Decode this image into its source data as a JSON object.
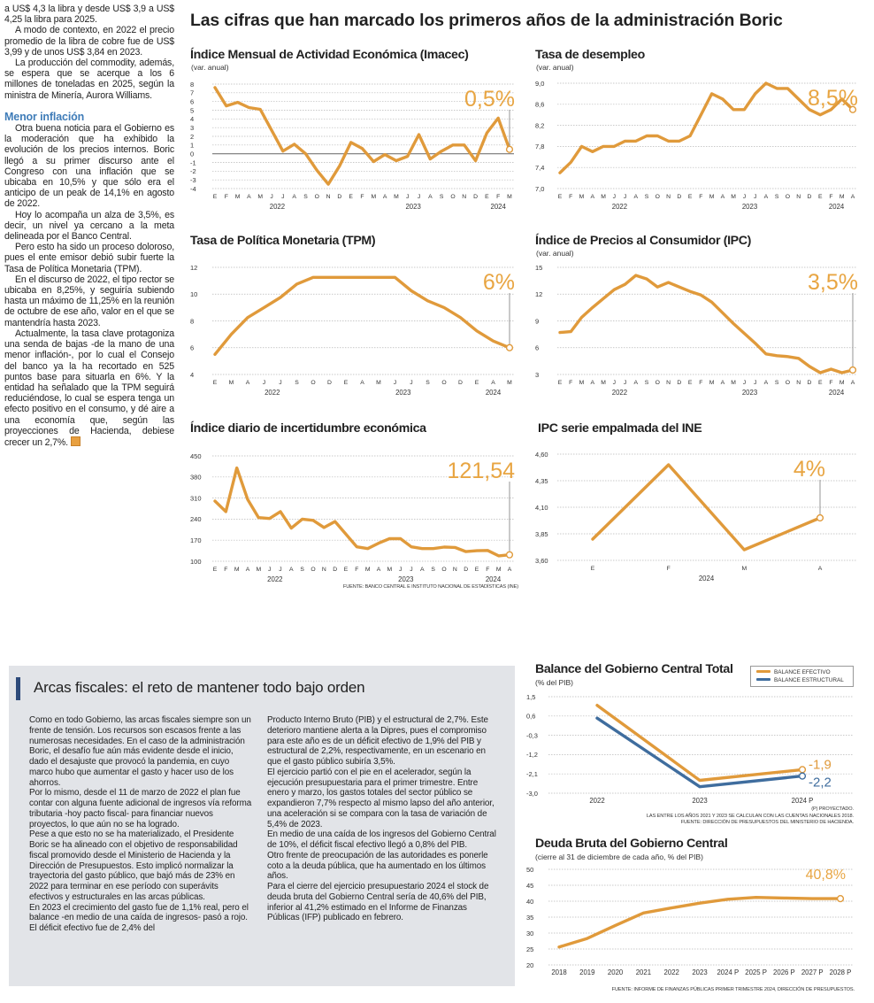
{
  "headline": "Las cifras que han marcado los primeros años de la administración Boric",
  "left_column": {
    "paragraphs_top": [
      "a US$ 4,3 la libra y desde US$ 3,9 a US$ 4,25 la libra para 2025.",
      "A modo de contexto, en 2022 el precio promedio de la libra de cobre fue de US$ 3,99 y de unos US$ 3,84 en 2023.",
      "La producción del commodity, además, se espera que se acerque a los 6 millones de toneladas en 2025, según la ministra de Minería, Aurora Williams."
    ],
    "subhead": "Menor inflación",
    "paragraphs_bottom": [
      "Otra buena noticia para el Gobierno es la moderación que ha exhibido la evolución de los precios internos. Boric llegó a su primer discurso ante el Congreso con una inflación que se ubicaba en 10,5% y que sólo era el anticipo de un peak de 14,1% en agosto de 2022.",
      "Hoy lo acompaña un alza de 3,5%, es decir, un nivel ya cercano a la meta delineada por el Banco Central.",
      "Pero esto ha sido un proceso doloroso, pues el ente emisor debió subir fuerte la Tasa de Política Monetaria (TPM).",
      "En el discurso de 2022, el tipo rector se ubicaba en 8,25%, y seguiría subiendo hasta un máximo de 11,25% en la reunión de octubre de ese año, valor en el que se mantendría hasta 2023.",
      "Actualmente, la tasa clave protagoniza una senda de bajas -de la mano de una menor inflación-, por lo cual el Consejo del banco ya la ha recortado en 525 puntos base para situarla en 6%. Y la entidad ha señalado que la TPM seguirá reduciéndose, lo cual se espera tenga un efecto positivo en el consumo, y dé aire a una economía que, según las proyecciones de Hacienda, debiese crecer un 2,7%."
    ],
    "end_icon": "end-of-article-square"
  },
  "fiscal_box": {
    "title": "Arcas fiscales: el reto de mantener todo bajo orden",
    "col1": [
      "Como en todo Gobierno, las arcas fiscales siempre son un frente de tensión. Los recursos son escasos frente a las numerosas necesidades. En el caso de la administración Boric, el desafío fue aún más evidente desde el inicio, dado el desajuste que provocó la pandemia, en cuyo marco hubo que aumentar el gasto y hacer uso de los ahorros.",
      "Por lo mismo, desde el 11 de marzo de 2022 el plan fue contar con alguna fuente adicional de ingresos vía reforma tributaria -hoy pacto fiscal- para financiar nuevos proyectos, lo que aún no se ha logrado.",
      "Pese a que esto no se ha materializado, el Presidente Boric se ha alineado con el objetivo de responsabilidad fiscal promovido desde el Ministerio de Hacienda y la Dirección de Presupuestos. Esto implicó normalizar la trayectoria del gasto público, que bajó más de 23% en 2022 para terminar en ese período con superávits efectivos y estructurales en las arcas públicas.",
      "En 2023 el crecimiento del gasto fue de 1,1% real, pero el balance -en medio de una caída de ingresos- pasó a rojo. El déficit efectivo fue de 2,4% del"
    ],
    "col2": [
      "Producto Interno Bruto (PIB) y el estructural de 2,7%. Este deterioro mantiene alerta a la Dipres, pues el compromiso para este año es de un déficit efectivo de 1,9% del PIB y estructural de 2,2%, respectivamente, en un escenario en que el gasto público subiría 3,5%.",
      "El ejercicio partió con el pie en el acelerador, según la ejecución presupuestaria para el primer trimestre. Entre enero y marzo, los gastos totales del sector público se expandieron 7,7% respecto al mismo lapso del año anterior, una aceleración si se compara con la tasa de variación de 5,4% de 2023.",
      "En medio de una caída de los ingresos del Gobierno Central de 10%, el déficit fiscal efectivo llegó a 0,8% del PIB.",
      "Otro frente de preocupación de las autoridades es ponerle coto a la deuda pública, que ha aumentado en los últimos años.",
      "Para el cierre del ejercicio presupuestario 2024 el stock de deuda bruta del Gobierno Central sería de 40,6% del PIB, inferior al 41,2% estimado en el Informe de Finanzas Públicas (IFP) publicado en febrero."
    ]
  },
  "colors": {
    "orange": "#e09a3b",
    "orange_label": "#e8a542",
    "blue": "#3f6d9e",
    "box_bg": "#e2e4e8",
    "accent_bar": "#2d4a7a",
    "subhead": "#3f7cb8"
  },
  "chart_data": [
    {
      "id": "imacec",
      "type": "line",
      "title": "Índice Mensual de Actividad Económica (Imacec)",
      "subtitle": "(var. anual)",
      "categories": [
        "E",
        "F",
        "M",
        "A",
        "M",
        "J",
        "J",
        "A",
        "S",
        "O",
        "N",
        "D",
        "E",
        "F",
        "M",
        "A",
        "M",
        "J",
        "J",
        "A",
        "S",
        "O",
        "N",
        "D",
        "E",
        "F",
        "M"
      ],
      "year_groups": [
        {
          "year": "2022",
          "count": 12
        },
        {
          "year": "2023",
          "count": 12
        },
        {
          "year": "2024",
          "count": 3
        }
      ],
      "series": [
        {
          "color": "#e09a3b",
          "values": [
            7.6,
            5.5,
            5.9,
            5.3,
            5.1,
            2.7,
            0.3,
            1.1,
            0.0,
            -1.9,
            -3.5,
            -1.4,
            1.3,
            0.6,
            -0.9,
            -0.1,
            -0.8,
            -0.3,
            2.2,
            -0.6,
            0.3,
            1.0,
            1.0,
            -0.8,
            2.4,
            4.1,
            0.5
          ]
        }
      ],
      "ylim": [
        -4,
        8
      ],
      "y_ticks": [
        "8",
        "7",
        "6",
        "5",
        "4",
        "3",
        "2",
        "1",
        "0",
        "-1",
        "-2",
        "-3",
        "-4"
      ],
      "zero_line": true,
      "grid": true,
      "callout": "0,5%",
      "callout_style": "line"
    },
    {
      "id": "desempleo",
      "type": "line",
      "title": "Tasa de desempleo",
      "subtitle": "(var. anual)",
      "categories": [
        "E",
        "F",
        "M",
        "A",
        "M",
        "J",
        "J",
        "A",
        "S",
        "O",
        "N",
        "D",
        "E",
        "F",
        "M",
        "A",
        "M",
        "J",
        "J",
        "A",
        "S",
        "O",
        "N",
        "D",
        "E",
        "F",
        "M",
        "A"
      ],
      "year_groups": [
        {
          "year": "2022",
          "count": 12
        },
        {
          "year": "2023",
          "count": 12
        },
        {
          "year": "2024",
          "count": 4
        }
      ],
      "series": [
        {
          "color": "#e09a3b",
          "values": [
            7.3,
            7.5,
            7.8,
            7.7,
            7.8,
            7.8,
            7.9,
            7.9,
            8.0,
            8.0,
            7.9,
            7.9,
            8.0,
            8.4,
            8.8,
            8.7,
            8.5,
            8.5,
            8.8,
            9.0,
            8.9,
            8.9,
            8.7,
            8.5,
            8.4,
            8.5,
            8.7,
            8.5
          ]
        }
      ],
      "ylim": [
        7.0,
        9.0
      ],
      "y_ticks": [
        "9,0",
        "8,6",
        "8,2",
        "7,8",
        "7,4",
        "7,0"
      ],
      "grid": true,
      "callout": "8,5%",
      "callout_style": "line"
    },
    {
      "id": "tpm",
      "type": "line",
      "title": "Tasa de Política Monetaria (TPM)",
      "categories": [
        "E",
        "M",
        "A",
        "J",
        "J",
        "S",
        "O",
        "D",
        "E",
        "A",
        "M",
        "J",
        "J",
        "S",
        "O",
        "D",
        "E",
        "A",
        "M"
      ],
      "year_groups": [
        {
          "year": "2022",
          "count": 8
        },
        {
          "year": "2023",
          "count": 8
        },
        {
          "year": "2024",
          "count": 3
        }
      ],
      "series": [
        {
          "color": "#e09a3b",
          "values": [
            5.5,
            7.0,
            8.25,
            9.0,
            9.75,
            10.75,
            11.25,
            11.25,
            11.25,
            11.25,
            11.25,
            11.25,
            10.25,
            9.5,
            9.0,
            8.25,
            7.25,
            6.5,
            6.0
          ]
        }
      ],
      "ylim": [
        4,
        12
      ],
      "y_ticks": [
        "12",
        "10",
        "8",
        "6",
        "4"
      ],
      "grid": true,
      "callout": "6%",
      "callout_style": "line"
    },
    {
      "id": "ipc",
      "type": "line",
      "title": "Índice de Precios al Consumidor (IPC)",
      "subtitle": "(var. anual)",
      "categories": [
        "E",
        "F",
        "M",
        "A",
        "M",
        "J",
        "J",
        "A",
        "S",
        "O",
        "N",
        "D",
        "E",
        "F",
        "M",
        "A",
        "M",
        "J",
        "J",
        "A",
        "S",
        "O",
        "N",
        "D",
        "E",
        "F",
        "M",
        "A"
      ],
      "year_groups": [
        {
          "year": "2022",
          "count": 12
        },
        {
          "year": "2023",
          "count": 12
        },
        {
          "year": "2024",
          "count": 4
        }
      ],
      "series": [
        {
          "color": "#e09a3b",
          "values": [
            7.7,
            7.8,
            9.4,
            10.5,
            11.5,
            12.5,
            13.1,
            14.1,
            13.7,
            12.8,
            13.3,
            12.8,
            12.3,
            11.9,
            11.1,
            9.9,
            8.7,
            7.6,
            6.5,
            5.3,
            5.1,
            5.0,
            4.8,
            3.9,
            3.2,
            3.6,
            3.2,
            3.5
          ]
        }
      ],
      "ylim": [
        3,
        15
      ],
      "y_ticks": [
        "15",
        "12",
        "9",
        "6",
        "3"
      ],
      "grid": true,
      "callout": "3,5%",
      "callout_style": "line"
    },
    {
      "id": "incertidumbre",
      "type": "line",
      "title": "Índice diario de incertidumbre económica",
      "categories": [
        "E",
        "F",
        "M",
        "A",
        "M",
        "J",
        "J",
        "A",
        "S",
        "O",
        "N",
        "D",
        "E",
        "F",
        "M",
        "A",
        "M",
        "J",
        "J",
        "A",
        "S",
        "O",
        "N",
        "D",
        "E",
        "F",
        "M",
        "A"
      ],
      "year_groups": [
        {
          "year": "2022",
          "count": 12
        },
        {
          "year": "2023",
          "count": 12
        },
        {
          "year": "2024",
          "count": 4
        }
      ],
      "series": [
        {
          "color": "#e09a3b",
          "values": [
            300,
            265,
            410,
            305,
            245,
            242,
            265,
            210,
            240,
            236,
            212,
            232,
            190,
            148,
            142,
            160,
            175,
            175,
            148,
            142,
            142,
            147,
            146,
            132,
            135,
            136,
            118,
            121.54
          ]
        }
      ],
      "ylim": [
        100,
        450
      ],
      "y_ticks": [
        "450",
        "380",
        "310",
        "240",
        "170",
        "100"
      ],
      "grid": true,
      "callout": "121,54",
      "callout_style": "line",
      "source": "FUENTE: BANCO CENTRAL E INSTITUTO NACIONAL DE ESTADÍSTICAS (INE)"
    },
    {
      "id": "ipc-empalmada",
      "type": "line",
      "title": "IPC serie empalmada del INE",
      "categories": [
        "E",
        "F",
        "M",
        "A"
      ],
      "year_groups": [
        {
          "year": "2024",
          "count": 4
        }
      ],
      "series": [
        {
          "color": "#e09a3b",
          "values": [
            3.8,
            4.5,
            3.7,
            4.0
          ]
        }
      ],
      "ylim": [
        3.6,
        4.6
      ],
      "y_ticks": [
        "4,60",
        "4,35",
        "4,10",
        "3,85",
        "3,60"
      ],
      "grid": true,
      "callout": "4%",
      "callout_style": "line"
    },
    {
      "id": "balance",
      "type": "line",
      "title": "Balance del Gobierno Central Total",
      "subtitle": "(% del PIB)",
      "categories": [
        "2022",
        "2023",
        "2024 P"
      ],
      "series": [
        {
          "name": "BALANCE EFECTIVO",
          "color": "#e09a3b",
          "values": [
            1.1,
            -2.4,
            -1.9
          ],
          "end_label": "-1,9"
        },
        {
          "name": "BALANCE ESTRUCTURAL",
          "color": "#3f6d9e",
          "values": [
            0.5,
            -2.7,
            -2.2
          ],
          "end_label": "-2,2"
        }
      ],
      "ylim": [
        -3.0,
        1.5
      ],
      "y_ticks": [
        "1,5",
        "0,6",
        "-0,3",
        "-1,2",
        "-2,1",
        "-3,0"
      ],
      "grid": true,
      "callout_style": "side",
      "legend": "top-right",
      "notes": [
        "(P) PROYECTADO.",
        "LAS ENTRE LOS AÑOS 2021 Y 2023 SE CALCULAN  CON LAS CUENTAS NACIONALES 2018.",
        "FUENTE: DIRECCIÓN DE PRESUPUESTOS DEL MINISTERIO DE HACIENDA."
      ]
    },
    {
      "id": "deuda",
      "type": "line",
      "title": "Deuda Bruta del Gobierno Central",
      "subtitle": "(cierre al 31 de diciembre de cada año, % del PIB)",
      "categories": [
        "2018",
        "2019",
        "2020",
        "2021",
        "2022",
        "2023",
        "2024 P",
        "2025 P",
        "2026 P",
        "2027 P",
        "2028 P"
      ],
      "series": [
        {
          "color": "#e09a3b",
          "values": [
            25.6,
            28.3,
            32.4,
            36.3,
            37.9,
            39.4,
            40.6,
            41.2,
            41.0,
            40.8,
            40.8
          ]
        }
      ],
      "ylim": [
        20,
        50
      ],
      "y_ticks": [
        "50",
        "45",
        "40",
        "35",
        "30",
        "25",
        "20"
      ],
      "grid": true,
      "callout": "40,8%",
      "callout_style": "above",
      "source": "FUENTE: INFORME DE FINANZAS PÚBLICAS PRIMER TRIMESTRE 2024, DIRECCIÓN DE PRESUPUESTOS."
    }
  ]
}
